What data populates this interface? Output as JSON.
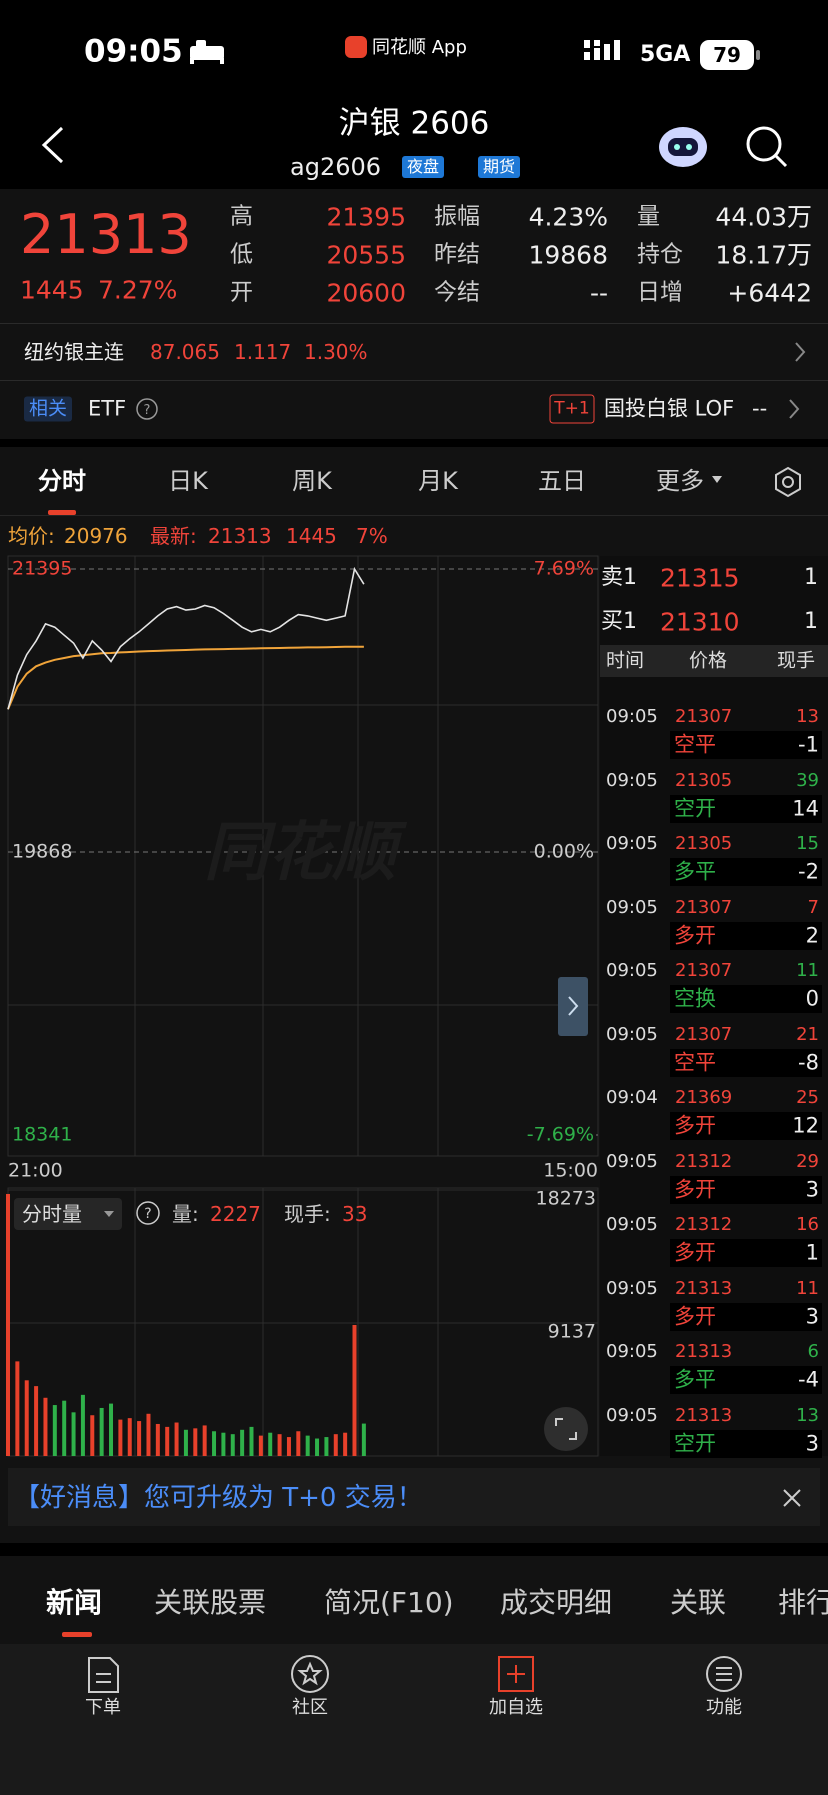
{
  "status_bar": {
    "time": "09:05",
    "app": "同花顺 App",
    "network": "5GA",
    "battery": "79"
  },
  "header": {
    "title": "沪银 2606",
    "code": "ag2606",
    "badges": [
      "夜盘",
      "期货"
    ]
  },
  "quote": {
    "price": "21313",
    "change": "1445",
    "change_pct": "7.27%",
    "stats": [
      {
        "label": "高",
        "value": "21395",
        "color": "#f0443a"
      },
      {
        "label": "低",
        "value": "20555",
        "color": "#f0443a"
      },
      {
        "label": "开",
        "value": "20600",
        "color": "#f0443a"
      },
      {
        "label": "振幅",
        "value": "4.23%",
        "color": "#eeeeee"
      },
      {
        "label": "昨结",
        "value": "19868",
        "color": "#eeeeee"
      },
      {
        "label": "今结",
        "value": "--",
        "color": "#eeeeee"
      },
      {
        "label": "量",
        "value": "44.03万",
        "color": "#eeeeee"
      },
      {
        "label": "持仓",
        "value": "18.17万",
        "color": "#eeeeee"
      },
      {
        "label": "日增",
        "value": "+6442",
        "color": "#eeeeee"
      }
    ]
  },
  "ny_silver": {
    "name": "纽约银主连",
    "price": "87.065",
    "change": "1.117",
    "pct": "1.30%"
  },
  "related": {
    "label": "相关",
    "etf": "ETF",
    "badge": "T+1",
    "fund": "国投白银 LOF",
    "fund_value": "--"
  },
  "tabs": [
    "分时",
    "日K",
    "周K",
    "月K",
    "五日",
    "更多"
  ],
  "info_line": {
    "avg_label": "均价:",
    "avg": "20976",
    "latest_label": "最新:",
    "latest": "21313",
    "change": "1445",
    "pct": "7%"
  },
  "watermark": "同花顺",
  "chart_data": [
    {
      "type": "line",
      "categories": [
        "21:00",
        null,
        null,
        null,
        null,
        null,
        null,
        null,
        null,
        null,
        null,
        null,
        null,
        null,
        null,
        null,
        null,
        null,
        null,
        null,
        null,
        null,
        null,
        null,
        null,
        null,
        null,
        null,
        null,
        null,
        null,
        null,
        null,
        null,
        null,
        null,
        null,
        null,
        null,
        null,
        null,
        null,
        null,
        null,
        null,
        null,
        null,
        null,
        null,
        null,
        null,
        null,
        null,
        null,
        null,
        null,
        null,
        null,
        null,
        null,
        null,
        null,
        null,
        "15:00"
      ],
      "series": [
        {
          "color": "#e4e4e4",
          "values": [
            20638,
            20822,
            20933,
            21007,
            21099,
            21081,
            21038,
            20995,
            20915,
            21007,
            20958,
            20896,
            20976,
            21019,
            21056,
            21099,
            21142,
            21179,
            21192,
            21173,
            21179,
            21198,
            21186,
            21155,
            21118,
            21081,
            21056,
            21069,
            21056,
            21081,
            21118,
            21149,
            21142,
            21130,
            21118,
            21130,
            21142,
            21395,
            21313,
            null,
            null,
            null,
            null,
            null,
            null,
            null,
            null,
            null,
            null,
            null,
            null,
            null,
            null,
            null,
            null,
            null,
            null,
            null,
            null,
            null,
            null,
            null,
            null,
            null
          ]
        },
        {
          "color": "#f0a43a",
          "values": [
            20638,
            20760,
            20830,
            20870,
            20890,
            20905,
            20915,
            20925,
            20930,
            20935,
            20940,
            20942,
            20945,
            20947,
            20950,
            20952,
            20953,
            20955,
            20957,
            20958,
            20960,
            20961,
            20962,
            20963,
            20964,
            20965,
            20966,
            20967,
            20968,
            20969,
            20970,
            20971,
            20972,
            20972,
            20973,
            20974,
            20975,
            20975,
            20976,
            null,
            null,
            null,
            null,
            null,
            null,
            null,
            null,
            null,
            null,
            null,
            null,
            null,
            null,
            null,
            null,
            null,
            null,
            null,
            null,
            null,
            null,
            null,
            null,
            null
          ]
        }
      ],
      "ylim": [
        18341,
        21395
      ],
      "yticks": [
        21395,
        19868,
        18341
      ],
      "y2lim": [
        -7.69,
        7.69
      ],
      "y2ticks": [
        {
          "value": 7.69,
          "label": "7.69%"
        },
        {
          "value": 0,
          "label": "0.00%"
        },
        {
          "value": -7.69,
          "label": "-7.69%"
        }
      ],
      "up_color": "#f0443a",
      "down_color": "#2fb14a",
      "flat_color": "#cccccc"
    },
    {
      "type": "bar",
      "title": "分时量",
      "values": [
        18000,
        6500,
        5200,
        4800,
        4000,
        3500,
        3800,
        3000,
        4200,
        2800,
        3300,
        3600,
        2500,
        2600,
        2400,
        2900,
        2200,
        2000,
        2300,
        1800,
        1900,
        2100,
        1700,
        1600,
        1500,
        1800,
        2000,
        1400,
        1600,
        1500,
        1300,
        1700,
        1400,
        1200,
        1300,
        1500,
        1600,
        9000,
        2227
      ],
      "ylim": [
        0,
        18273
      ],
      "yticks": [
        18273,
        9137
      ],
      "up_color": "#e8412b",
      "down_color": "#2fb14a"
    }
  ],
  "volume_info": {
    "label": "量:",
    "volume": "2227",
    "hand_label": "现手:",
    "hand": "33"
  },
  "order_book": {
    "ask": {
      "label": "卖1",
      "price": "21315",
      "qty": "1"
    },
    "bid": {
      "label": "买1",
      "price": "21310",
      "qty": "1"
    },
    "headers": [
      "时间",
      "价格",
      "现手"
    ],
    "trades": [
      {
        "time": "09:05",
        "price": "21307",
        "qty": "13",
        "type": "空平",
        "hand": "-1",
        "color": "#f0443a"
      },
      {
        "time": "09:05",
        "price": "21305",
        "qty": "39",
        "type": "空开",
        "hand": "14",
        "color": "#2fb14a"
      },
      {
        "time": "09:05",
        "price": "21305",
        "qty": "15",
        "type": "多平",
        "hand": "-2",
        "color": "#2fb14a"
      },
      {
        "time": "09:05",
        "price": "21307",
        "qty": "7",
        "type": "多开",
        "hand": "2",
        "color": "#f0443a"
      },
      {
        "time": "09:05",
        "price": "21307",
        "qty": "11",
        "type": "空换",
        "hand": "0",
        "color": "#2fb14a"
      },
      {
        "time": "09:05",
        "price": "21307",
        "qty": "21",
        "type": "空平",
        "hand": "-8",
        "color": "#f0443a"
      },
      {
        "time": "09:04",
        "price": "21369",
        "qty": "25",
        "type": "多开",
        "hand": "12",
        "color": "#f0443a"
      },
      {
        "time": "09:05",
        "price": "21312",
        "qty": "29",
        "type": "多开",
        "hand": "3",
        "color": "#f0443a"
      },
      {
        "time": "09:05",
        "price": "21312",
        "qty": "16",
        "type": "多开",
        "hand": "1",
        "color": "#f0443a"
      },
      {
        "time": "09:05",
        "price": "21313",
        "qty": "11",
        "type": "多开",
        "hand": "3",
        "color": "#f0443a"
      },
      {
        "time": "09:05",
        "price": "21313",
        "qty": "6",
        "type": "多平",
        "hand": "-4",
        "color": "#2fb14a"
      },
      {
        "time": "09:05",
        "price": "21313",
        "qty": "13",
        "type": "空开",
        "hand": "3",
        "color": "#2fb14a"
      }
    ]
  },
  "banner": "【好消息】您可升级为 T+0 交易！",
  "news_tabs": [
    "新闻",
    "关联股票",
    "简况(F10)",
    "成交明细",
    "关联",
    "排行"
  ],
  "nav": [
    "下单",
    "社区",
    "加自选",
    "功能"
  ]
}
